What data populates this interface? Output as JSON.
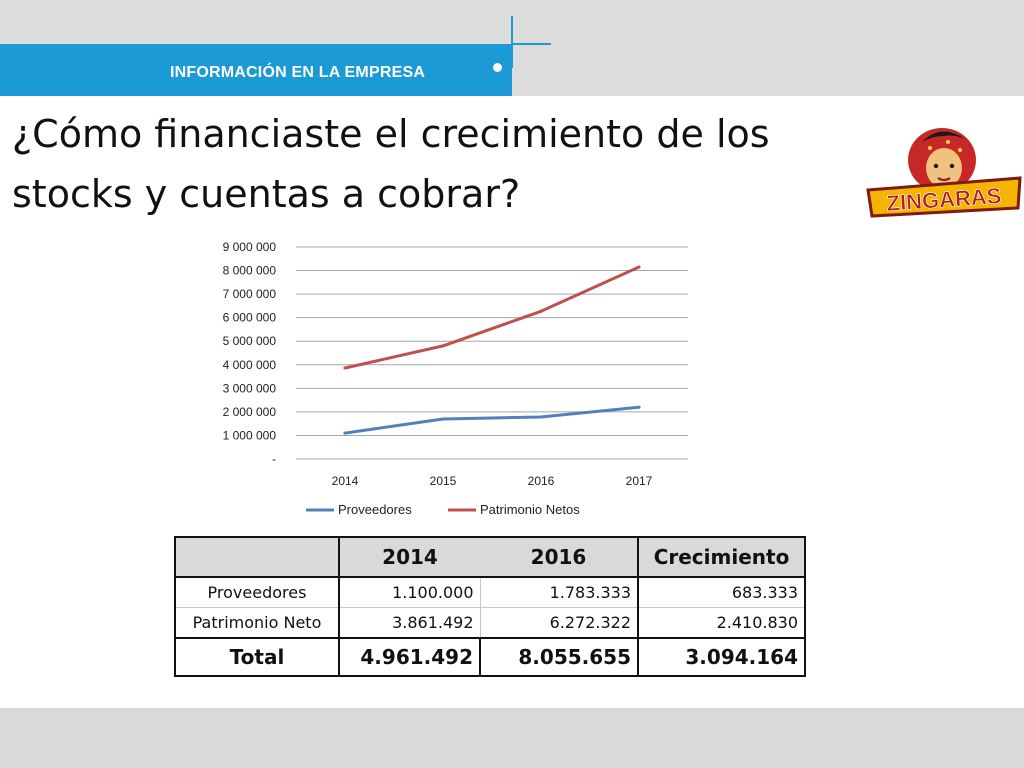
{
  "header": {
    "section_label": "INFORMACIÓN EN LA EMPRESA"
  },
  "title_line1": "¿Cómo financiaste el crecimiento de los",
  "title_line2": "stocks y cuentas a cobrar?",
  "logo": {
    "text": "ZINGARAS"
  },
  "colors": {
    "accent_blue": "#1b9ad6",
    "series_proveedores": "#4f81bd",
    "series_patrimonio": "#c0504d"
  },
  "chart_data": {
    "type": "line",
    "title": "",
    "xlabel": "",
    "ylabel": "",
    "categories": [
      "2014",
      "2015",
      "2016",
      "2017"
    ],
    "series": [
      {
        "name": "Proveedores",
        "values": [
          1100000,
          1700000,
          1783333,
          2200000
        ]
      },
      {
        "name": "Patrimonio Netos",
        "values": [
          3861492,
          4800000,
          6272322,
          8150000
        ]
      }
    ],
    "ylim": [
      0,
      9000000
    ],
    "yticks": [
      0,
      1000000,
      2000000,
      3000000,
      4000000,
      5000000,
      6000000,
      7000000,
      8000000,
      9000000
    ],
    "ytick_labels": [
      "-",
      "1 000 000",
      "2 000 000",
      "3 000 000",
      "4 000 000",
      "5 000 000",
      "6 000 000",
      "7 000 000",
      "8 000 000",
      "9 000 000"
    ],
    "grid": true,
    "legend": "bottom"
  },
  "table": {
    "headers": [
      "",
      "2014",
      "2016",
      "Crecimiento"
    ],
    "rows": [
      {
        "label": "Proveedores",
        "v2014": "1.100.000",
        "v2016": "1.783.333",
        "growth": "683.333"
      },
      {
        "label": "Patrimonio Neto",
        "v2014": "3.861.492",
        "v2016": "6.272.322",
        "growth": "2.410.830"
      }
    ],
    "total": {
      "label": "Total",
      "v2014": "4.961.492",
      "v2016": "8.055.655",
      "growth": "3.094.164"
    }
  }
}
